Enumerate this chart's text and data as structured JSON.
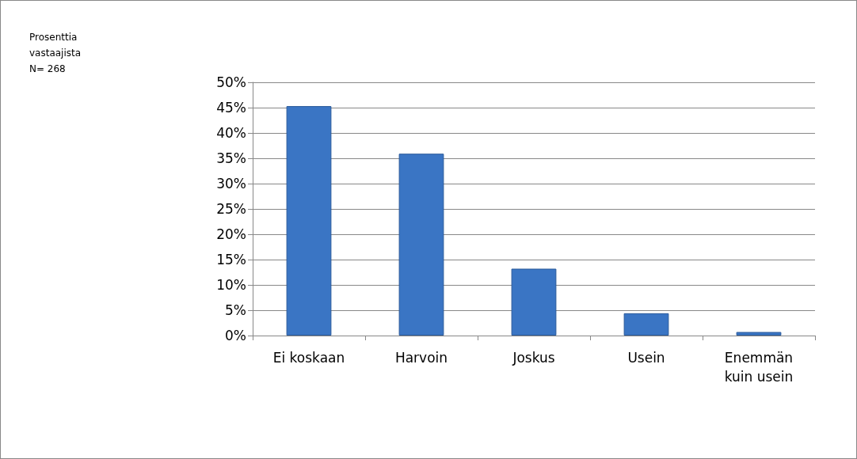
{
  "chart_data": {
    "type": "bar",
    "annotations": [
      "Prosenttia\nvastaajista\nN= 268"
    ],
    "categories": [
      "Ei koskaan",
      "Harvoin",
      "Joskus",
      "Usein",
      "Enemmän\nkuin usein"
    ],
    "values": [
      45.3,
      35.9,
      13.2,
      4.4,
      0.7
    ],
    "color": "#3a75c4",
    "ylim": [
      0,
      50
    ],
    "yticks": [
      {
        "value": 0,
        "label": "0%"
      },
      {
        "value": 5,
        "label": "5%"
      },
      {
        "value": 10,
        "label": "10%"
      },
      {
        "value": 15,
        "label": "15%"
      },
      {
        "value": 20,
        "label": "20%"
      },
      {
        "value": 25,
        "label": "25%"
      },
      {
        "value": 30,
        "label": "30%"
      },
      {
        "value": 35,
        "label": "35%"
      },
      {
        "value": 40,
        "label": "40%"
      },
      {
        "value": 45,
        "label": "45%"
      },
      {
        "value": 50,
        "label": "50%"
      }
    ],
    "grid": "y"
  }
}
